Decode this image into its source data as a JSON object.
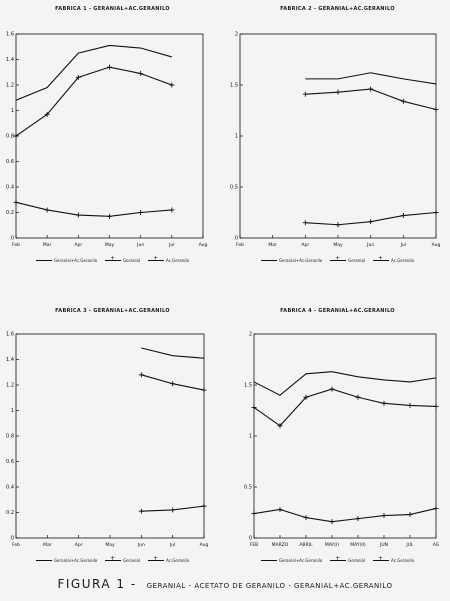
{
  "chart_data": [
    {
      "type": "line",
      "title": "FABRICA 1 - GERANIAL+AC.GERANILO",
      "categories": [
        "Feb",
        "Mar",
        "Apr",
        "May",
        "Jun",
        "Jul",
        "Aug"
      ],
      "y_ticks": [
        "0",
        "0.2",
        "0.4",
        "0.6",
        "0.8",
        "1",
        "1.2",
        "1.4",
        "1.6"
      ],
      "ylim": [
        0,
        1.6
      ],
      "series": [
        {
          "name": "Geranial+Ac.Geranilo",
          "values": [
            1.08,
            1.18,
            1.45,
            1.51,
            1.49,
            1.42,
            null
          ]
        },
        {
          "name": "Geranial",
          "values": [
            0.8,
            0.97,
            1.26,
            1.34,
            1.29,
            1.2,
            null
          ]
        },
        {
          "name": "Ac.Geranilo",
          "values": [
            0.28,
            0.22,
            0.18,
            0.17,
            0.2,
            0.22,
            null
          ]
        }
      ]
    },
    {
      "type": "line",
      "title": "FABRICA 2 - GERANIAL+AC.GERANILO",
      "categories": [
        "Feb",
        "Mar",
        "Apr",
        "May",
        "Jun",
        "Jul",
        "Aug"
      ],
      "y_ticks": [
        "0",
        "0.5",
        "1",
        "1.5",
        "2"
      ],
      "ylim": [
        0,
        2
      ],
      "series": [
        {
          "name": "Geranial+Ac.Geranilo",
          "values": [
            null,
            null,
            1.56,
            1.56,
            1.62,
            1.56,
            1.51
          ]
        },
        {
          "name": "Geranial",
          "values": [
            null,
            null,
            1.41,
            1.43,
            1.46,
            1.34,
            1.26
          ]
        },
        {
          "name": "Ac.Geranilo",
          "values": [
            null,
            null,
            0.15,
            0.13,
            0.16,
            0.22,
            0.25
          ]
        }
      ]
    },
    {
      "type": "line",
      "title": "FABRICA 3 - GERANIAL+AC.GERANILO",
      "categories": [
        "Feb",
        "Mar",
        "Apr",
        "May",
        "Jun",
        "Jul",
        "Aug"
      ],
      "y_ticks": [
        "0",
        "0.2",
        "0.4",
        "0.6",
        "0.8",
        "1",
        "1.2",
        "1.4",
        "1.6"
      ],
      "ylim": [
        0,
        1.6
      ],
      "series": [
        {
          "name": "Geranial+Ac.Geranilo",
          "values": [
            null,
            null,
            null,
            null,
            1.49,
            1.43,
            1.41
          ]
        },
        {
          "name": "Geranial",
          "values": [
            null,
            null,
            null,
            null,
            1.28,
            1.21,
            1.16
          ]
        },
        {
          "name": "Ac.Geranilo",
          "values": [
            null,
            null,
            null,
            null,
            0.21,
            0.22,
            0.25
          ]
        }
      ]
    },
    {
      "type": "line",
      "title": "FABRICA 4 - GERANIAL+AC.GERANILO",
      "categories": [
        "FEB",
        "MARZO",
        "ABRIL",
        "MAY(I)",
        "MAY(II)",
        "JUN",
        "JUL",
        "AG"
      ],
      "y_ticks": [
        "0",
        "0.5",
        "1",
        "1.5",
        "2"
      ],
      "ylim": [
        0,
        2
      ],
      "series": [
        {
          "name": "Geranial+Ac.Geranilo",
          "values": [
            1.53,
            1.4,
            1.61,
            1.63,
            1.58,
            1.55,
            1.53,
            1.57
          ]
        },
        {
          "name": "Geranial",
          "values": [
            1.28,
            1.1,
            1.38,
            1.46,
            1.38,
            1.32,
            1.3,
            1.29
          ]
        },
        {
          "name": "Ac.Geranilo",
          "values": [
            0.24,
            0.28,
            0.2,
            0.16,
            0.19,
            0.22,
            0.23,
            0.29
          ]
        }
      ]
    }
  ],
  "legend": [
    "Geranial+Ac.Geranilo",
    "Geranial",
    "Ac.Geranilo"
  ],
  "caption": {
    "lead": "FIGURA 1 -",
    "rest": "GERANIAL - ACETATO DE GERANILO - GERANIAL+AC.GERANILO"
  }
}
